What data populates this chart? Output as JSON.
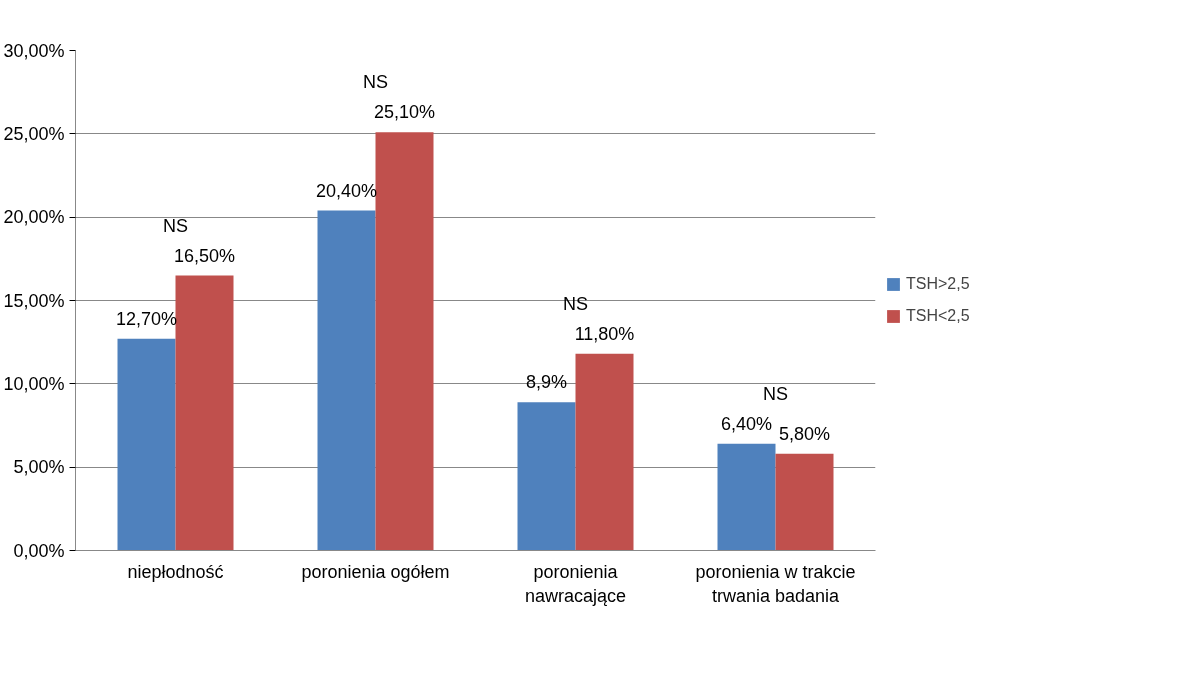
{
  "chart_data": {
    "type": "bar",
    "categories": [
      "niepłodność",
      "poronienia ogółem",
      "poronienia nawracające",
      "poronienia w trakcie trwania badania"
    ],
    "series": [
      {
        "name": "TSH>2,5",
        "color": "#4f81bd",
        "values": [
          12.7,
          20.4,
          8.9,
          6.4
        ],
        "value_labels": [
          "12,70%",
          "20,40%",
          "8,9%",
          "6,40%"
        ]
      },
      {
        "name": "TSH<2,5",
        "color": "#c0504d",
        "values": [
          16.5,
          25.1,
          11.8,
          5.8
        ],
        "value_labels": [
          "16,50%",
          "25,10%",
          "11,80%",
          "5,80%"
        ]
      }
    ],
    "ylim": [
      0,
      30
    ],
    "yticks": [
      {
        "value": 0,
        "label": "0,00%"
      },
      {
        "value": 5,
        "label": "5,00%"
      },
      {
        "value": 10,
        "label": "10,00%"
      },
      {
        "value": 15,
        "label": "15,00%"
      },
      {
        "value": 20,
        "label": "20,00%"
      },
      {
        "value": 25,
        "label": "25,00%"
      },
      {
        "value": 30,
        "label": "30,00%"
      }
    ],
    "annotations": [
      "NS",
      "NS",
      "NS",
      "NS"
    ],
    "grid": "y",
    "legend": "right"
  }
}
